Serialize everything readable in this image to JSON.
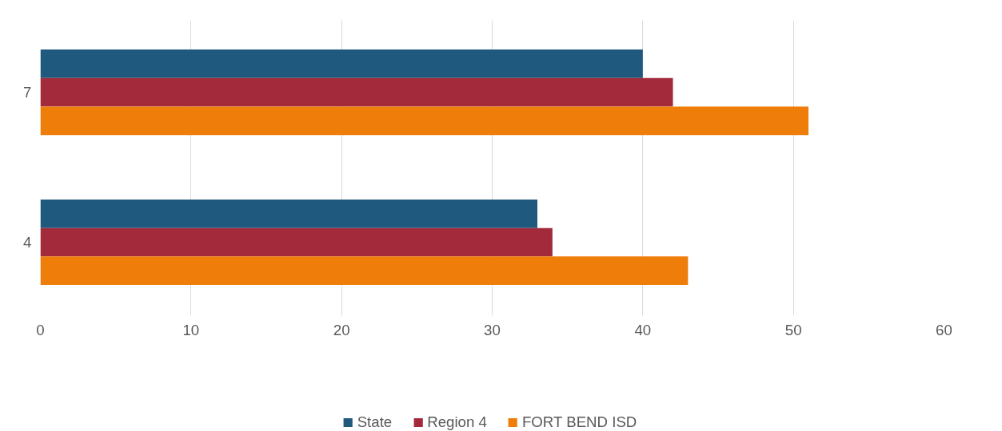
{
  "chart_data": {
    "type": "bar",
    "orientation": "horizontal",
    "categories": [
      "7",
      "4"
    ],
    "series": [
      {
        "name": "State",
        "color": "#1f5a7e",
        "values": [
          40,
          33
        ]
      },
      {
        "name": "Region 4",
        "color": "#a22a3a",
        "values": [
          42,
          34
        ]
      },
      {
        "name": "FORT BEND ISD",
        "color": "#ef7d0a",
        "values": [
          51,
          43
        ]
      }
    ],
    "xlim": [
      0,
      60
    ],
    "xticks": [
      0,
      10,
      20,
      30,
      40,
      50,
      60
    ],
    "grid": "x",
    "legend": "bottom"
  }
}
